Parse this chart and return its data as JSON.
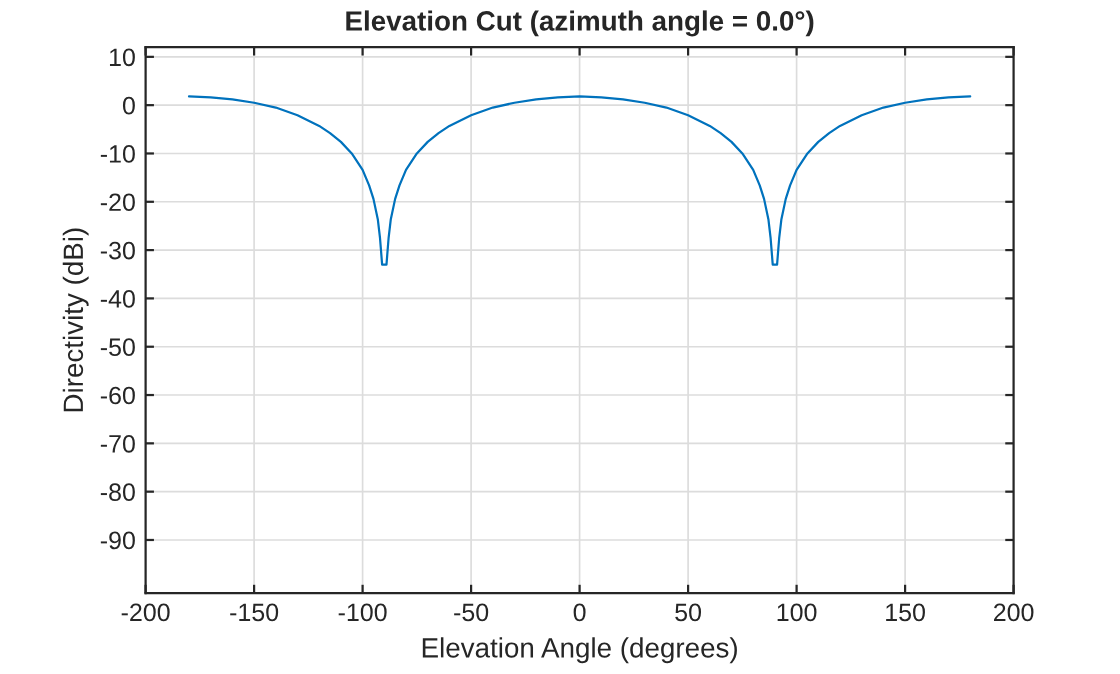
{
  "chart_data": {
    "type": "line",
    "title": "Elevation Cut (azimuth angle = 0.0°)",
    "xlabel": "Elevation Angle (degrees)",
    "ylabel": "Directivity (dBi)",
    "x": [
      -180,
      -170,
      -160,
      -150,
      -140,
      -130,
      -120,
      -115,
      -110,
      -105,
      -100,
      -97,
      -95,
      -93,
      -92,
      -91,
      -90,
      -89,
      -88,
      -87,
      -85,
      -83,
      -80,
      -75,
      -70,
      -65,
      -60,
      -50,
      -40,
      -30,
      -20,
      -10,
      0,
      10,
      20,
      30,
      40,
      50,
      60,
      65,
      70,
      75,
      80,
      83,
      85,
      87,
      88,
      89,
      90,
      91,
      92,
      93,
      95,
      97,
      100,
      105,
      110,
      115,
      120,
      130,
      140,
      150,
      160,
      170,
      180
    ],
    "series": [
      {
        "color": "#0072bd",
        "values": [
          1.8,
          1.6,
          1.2,
          0.5,
          -0.5,
          -2.1,
          -4.3,
          -5.8,
          -7.6,
          -10.0,
          -13.4,
          -16.6,
          -19.4,
          -23.6,
          -27.4,
          -33,
          -33,
          -33,
          -27.4,
          -23.6,
          -19.4,
          -16.6,
          -13.4,
          -10.0,
          -7.6,
          -5.8,
          -4.3,
          -2.1,
          -0.5,
          0.5,
          1.2,
          1.6,
          1.8,
          1.6,
          1.2,
          0.5,
          -0.5,
          -2.1,
          -4.3,
          -5.8,
          -7.6,
          -10.0,
          -13.4,
          -16.6,
          -19.4,
          -23.6,
          -27.4,
          -33,
          -33,
          -33,
          -27.4,
          -23.6,
          -19.4,
          -16.6,
          -13.4,
          -10.0,
          -7.6,
          -5.8,
          -4.3,
          -2.1,
          -0.5,
          0.5,
          1.2,
          1.6,
          1.8
        ]
      }
    ],
    "xlim": [
      -200,
      200
    ],
    "xticks": [
      -200,
      -150,
      -100,
      -50,
      0,
      50,
      100,
      150,
      200
    ],
    "ylim": [
      -101,
      12
    ],
    "yticks": [
      -90,
      -80,
      -70,
      -60,
      -50,
      -40,
      -30,
      -20,
      -10,
      0,
      10
    ],
    "grid": true,
    "line_style": "solid",
    "marker": "none"
  }
}
